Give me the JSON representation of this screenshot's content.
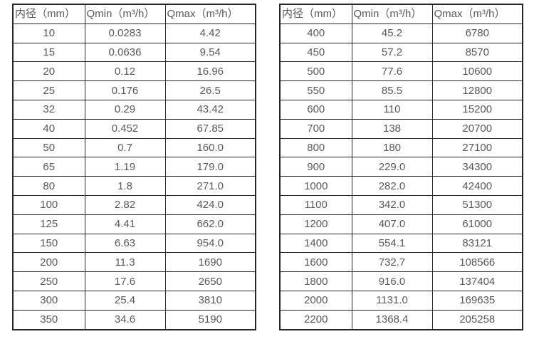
{
  "tables": [
    {
      "name": "flow-rate-table-small-diameters",
      "headers": [
        "内径（mm）",
        "Qmin（m³/h）",
        "Qmax（m³/h）"
      ],
      "rows": [
        [
          "10",
          "0.0283",
          "4.42"
        ],
        [
          "15",
          "0.0636",
          "9.54"
        ],
        [
          "20",
          "0.12",
          "16.96"
        ],
        [
          "25",
          "0.176",
          "26.5"
        ],
        [
          "32",
          "0.29",
          "43.42"
        ],
        [
          "40",
          "0.452",
          "67.85"
        ],
        [
          "50",
          "0.7",
          "160.0"
        ],
        [
          "65",
          "1.19",
          "179.0"
        ],
        [
          "80",
          "1.8",
          "271.0"
        ],
        [
          "100",
          "2.82",
          "424.0"
        ],
        [
          "125",
          "4.41",
          "662.0"
        ],
        [
          "150",
          "6.63",
          "954.0"
        ],
        [
          "200",
          "11.3",
          "1690"
        ],
        [
          "250",
          "17.6",
          "2650"
        ],
        [
          "300",
          "25.4",
          "3810"
        ],
        [
          "350",
          "34.6",
          "5190"
        ]
      ]
    },
    {
      "name": "flow-rate-table-large-diameters",
      "headers": [
        "内径（mm）",
        "Qmin（m³/h）",
        "Qmax（m³/h）"
      ],
      "rows": [
        [
          "400",
          "45.2",
          "6780"
        ],
        [
          "450",
          "57.2",
          "8570"
        ],
        [
          "500",
          "77.6",
          "10600"
        ],
        [
          "550",
          "85.5",
          "12800"
        ],
        [
          "600",
          "110",
          "15200"
        ],
        [
          "700",
          "138",
          "20700"
        ],
        [
          "800",
          "180",
          "27100"
        ],
        [
          "900",
          "229.0",
          "34300"
        ],
        [
          "1000",
          "282.0",
          "42400"
        ],
        [
          "1100",
          "342.0",
          "51300"
        ],
        [
          "1200",
          "407.0",
          "61000"
        ],
        [
          "1400",
          "554.1",
          "83121"
        ],
        [
          "1600",
          "732.7",
          "108566"
        ],
        [
          "1800",
          "916.0",
          "137404"
        ],
        [
          "2000",
          "1131.0",
          "169635"
        ],
        [
          "2200",
          "1368.4",
          "205258"
        ]
      ]
    }
  ],
  "colors": {
    "border": "#262626",
    "text": "#595959",
    "background": "#ffffff"
  },
  "cell_names": [
    "diameter-cell",
    "qmin-cell",
    "qmax-cell"
  ]
}
